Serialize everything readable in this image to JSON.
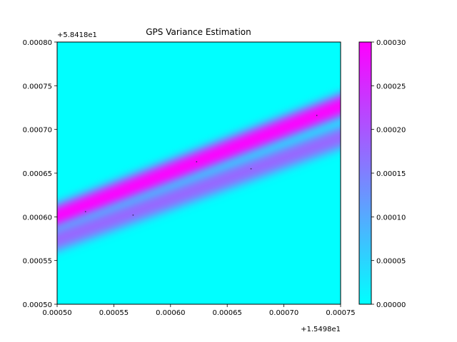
{
  "chart_data": {
    "type": "heatmap",
    "title": "GPS Variance Estimation",
    "x_offset_label": "+1.5498e1",
    "y_offset_label": "+5.8418e1",
    "xlim": [
      0.0005,
      0.00075
    ],
    "ylim": [
      0.0005,
      0.0008
    ],
    "x_ticks": [
      "0.00050",
      "0.00055",
      "0.00060",
      "0.00065",
      "0.00070",
      "0.00075"
    ],
    "y_ticks": [
      "0.00050",
      "0.00055",
      "0.00060",
      "0.00065",
      "0.00070",
      "0.00075",
      "0.00080"
    ],
    "x_tick_values": [
      0.0005,
      0.00055,
      0.0006,
      0.00065,
      0.0007,
      0.00075
    ],
    "y_tick_values": [
      0.0005,
      0.00055,
      0.0006,
      0.00065,
      0.0007,
      0.00075,
      0.0008
    ],
    "colorbar": {
      "range": [
        0.0,
        0.0003
      ],
      "ticks": [
        "0.00000",
        "0.00005",
        "0.00010",
        "0.00015",
        "0.00020",
        "0.00025",
        "0.00030"
      ],
      "tick_values": [
        0.0,
        5e-05,
        0.0001,
        0.00015,
        0.0002,
        0.00025,
        0.0003
      ],
      "colormap": "cool",
      "color_low": "#00ffff",
      "color_high": "#ff00ff"
    },
    "bands": [
      {
        "x": [
          0.0005,
          0.00075
        ],
        "y": [
          0.000601,
          0.000727
        ],
        "peak_value": 0.0003
      },
      {
        "x": [
          0.0005,
          0.00075
        ],
        "y": [
          0.000574,
          0.000691
        ],
        "peak_value": 0.00018
      }
    ],
    "points": [
      {
        "x": 0.000525,
        "y": 0.000606
      },
      {
        "x": 0.000567,
        "y": 0.000602
      },
      {
        "x": 0.000623,
        "y": 0.000663
      },
      {
        "x": 0.000671,
        "y": 0.000655
      },
      {
        "x": 0.000729,
        "y": 0.000716
      }
    ],
    "grid": false
  }
}
